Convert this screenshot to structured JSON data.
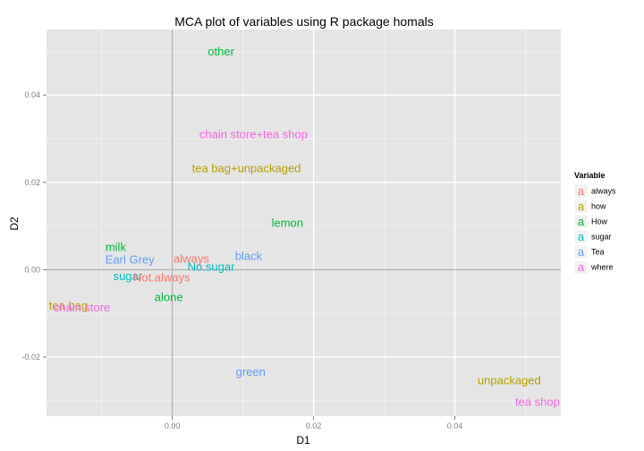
{
  "chart_data": {
    "type": "scatter",
    "title": "MCA plot of variables using R package homals",
    "xlabel": "D1",
    "ylabel": "D2",
    "xlim": [
      -0.0178,
      0.055
    ],
    "ylim": [
      -0.0335,
      0.055
    ],
    "xticks": [
      0.0,
      0.02,
      0.04
    ],
    "xtick_labels": [
      "0.00",
      "0.02",
      "0.04"
    ],
    "yticks": [
      -0.02,
      0.0,
      0.02,
      0.04
    ],
    "ytick_labels": [
      "-0.02",
      "0.00",
      "0.02",
      "0.04"
    ],
    "grid": true,
    "reference_lines": {
      "x": 0,
      "y": 0
    },
    "legend": {
      "title": "Variable",
      "placement": "right",
      "glyph": "a",
      "entries": [
        {
          "name": "always",
          "color": "#F8766D"
        },
        {
          "name": "how",
          "color": "#B79F00"
        },
        {
          "name": "How",
          "color": "#00BA38"
        },
        {
          "name": "sugar",
          "color": "#00BFC4"
        },
        {
          "name": "Tea",
          "color": "#619CFF"
        },
        {
          "name": "where",
          "color": "#F564E3"
        }
      ]
    },
    "points": [
      {
        "label": "other",
        "variable": "How",
        "x": 0.0069,
        "y": 0.05
      },
      {
        "label": "chain store+tea shop",
        "variable": "where",
        "x": 0.0115,
        "y": 0.031
      },
      {
        "label": "tea bag+unpackaged",
        "variable": "how",
        "x": 0.0105,
        "y": 0.0232
      },
      {
        "label": "lemon",
        "variable": "How",
        "x": 0.0163,
        "y": 0.0107
      },
      {
        "label": "milk",
        "variable": "How",
        "x": -0.008,
        "y": 0.0052
      },
      {
        "label": "Earl Grey",
        "variable": "Tea",
        "x": -0.006,
        "y": 0.0024
      },
      {
        "label": "always",
        "variable": "always",
        "x": 0.0027,
        "y": 0.0026
      },
      {
        "label": "black",
        "variable": "Tea",
        "x": 0.0108,
        "y": 0.0032
      },
      {
        "label": "No.sugar",
        "variable": "sugar",
        "x": 0.0055,
        "y": 0.0007
      },
      {
        "label": "sugar",
        "variable": "sugar",
        "x": -0.0063,
        "y": -0.0014
      },
      {
        "label": "Not.always",
        "variable": "always",
        "x": -0.0015,
        "y": -0.0017
      },
      {
        "label": "alone",
        "variable": "How",
        "x": -0.0005,
        "y": -0.0063
      },
      {
        "label": "tea bag",
        "variable": "how",
        "x": -0.0147,
        "y": -0.0082
      },
      {
        "label": "chain store",
        "variable": "where",
        "x": -0.0128,
        "y": -0.0086
      },
      {
        "label": "green",
        "variable": "Tea",
        "x": 0.0111,
        "y": -0.0234
      },
      {
        "label": "unpackaged",
        "variable": "how",
        "x": 0.0477,
        "y": -0.0253
      },
      {
        "label": "tea shop",
        "variable": "where",
        "x": 0.0517,
        "y": -0.0302
      }
    ]
  }
}
